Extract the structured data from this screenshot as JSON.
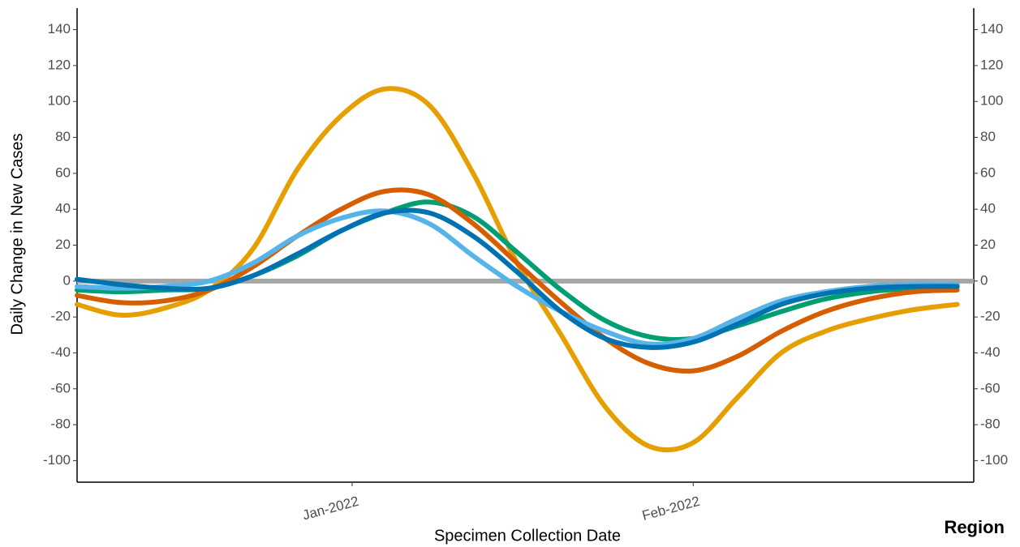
{
  "chart_data": {
    "type": "line",
    "x_label": "Specimen Collection Date",
    "y_label": "Daily Change in New Cases",
    "legend_title": "Region",
    "x": [
      0,
      4,
      8,
      12,
      16,
      20,
      24,
      28,
      32,
      36,
      40,
      44,
      48,
      52,
      56,
      60,
      64,
      68,
      72,
      76,
      80
    ],
    "xlim": [
      0,
      81.5
    ],
    "xticks": [
      {
        "value": 25,
        "label": "Jan-2022"
      },
      {
        "value": 56,
        "label": "Feb-2022"
      }
    ],
    "ylim": [
      -112,
      152
    ],
    "yticks": [
      -100,
      -80,
      -60,
      -40,
      -20,
      0,
      20,
      40,
      60,
      80,
      100,
      120,
      140
    ],
    "reference_line": 0,
    "reference_color": "#a6a6a6",
    "series": [
      {
        "color": "#E69F00",
        "values": [
          -13,
          -19,
          -15,
          -5,
          18,
          62,
          92,
          107,
          98,
          60,
          10,
          -30,
          -70,
          -92,
          -90,
          -65,
          -40,
          -28,
          -21,
          -16,
          -13
        ]
      },
      {
        "color": "#009E73",
        "values": [
          -5,
          -6,
          -5,
          -4,
          3,
          14,
          28,
          38,
          44,
          36,
          16,
          -5,
          -22,
          -31,
          -32,
          -25,
          -17,
          -10,
          -6,
          -4,
          -3
        ]
      },
      {
        "color": "#D55E00",
        "values": [
          -8,
          -12,
          -11,
          -5,
          8,
          25,
          40,
          50,
          48,
          32,
          10,
          -12,
          -32,
          -46,
          -50,
          -42,
          -28,
          -17,
          -10,
          -6,
          -5
        ]
      },
      {
        "color": "#56B4E9",
        "values": [
          -3,
          -4,
          -3,
          0,
          10,
          25,
          35,
          39,
          32,
          14,
          -3,
          -17,
          -28,
          -35,
          -32,
          -21,
          -11,
          -6,
          -3,
          -2,
          -2
        ]
      },
      {
        "color": "#0072B2",
        "values": [
          1,
          -2,
          -4,
          -4,
          3,
          15,
          28,
          38,
          38,
          25,
          5,
          -17,
          -32,
          -37,
          -34,
          -24,
          -13,
          -7,
          -4,
          -3,
          -3
        ]
      }
    ]
  }
}
